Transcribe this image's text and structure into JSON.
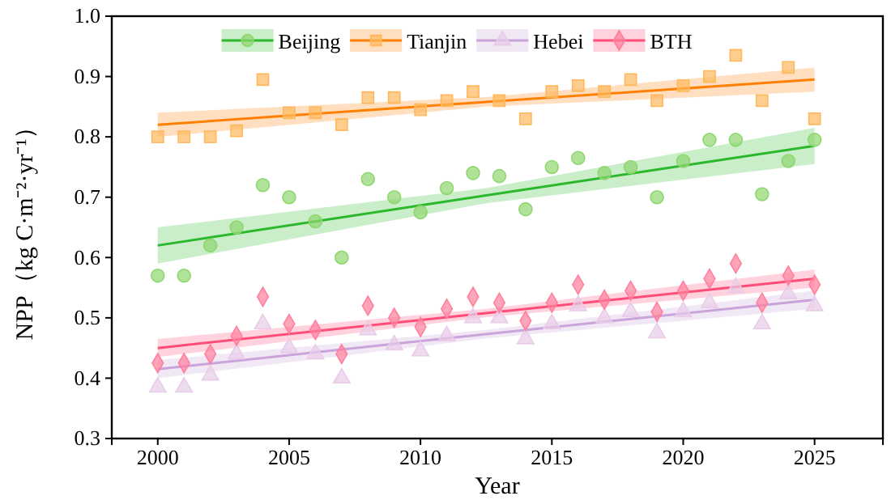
{
  "chart_data": {
    "type": "scatter",
    "xlabel": "Year",
    "ylabel": "NPP（kg C·m⁻²·yr⁻¹）",
    "xlim": [
      1998.25,
      2027.6
    ],
    "ylim": [
      0.3,
      1.0
    ],
    "xticks": [
      2000,
      2005,
      2010,
      2015,
      2020,
      2025
    ],
    "yticks": [
      0.3,
      0.4,
      0.5,
      0.6,
      0.7,
      0.8,
      0.9,
      {
        "value": 1,
        "label": "1.0"
      }
    ],
    "grid": false,
    "legend": "top",
    "x": [
      2000,
      2001,
      2002,
      2003,
      2004,
      2005,
      2006,
      2007,
      2008,
      2009,
      2010,
      2011,
      2012,
      2013,
      2014,
      2015,
      2016,
      2017,
      2018,
      2019,
      2020,
      2021,
      2022,
      2023,
      2024,
      2025
    ],
    "series": [
      {
        "name": "Beijing",
        "type": "scatter",
        "marker": "circle",
        "color": "#8fd66f",
        "values": [
          0.57,
          0.57,
          0.62,
          0.65,
          0.72,
          0.7,
          0.66,
          0.6,
          0.73,
          0.7,
          0.675,
          0.715,
          0.74,
          0.735,
          0.68,
          0.75,
          0.765,
          0.74,
          0.75,
          0.7,
          0.76,
          0.795,
          0.795,
          0.705,
          0.76,
          0.795
        ]
      },
      {
        "name": "Tianjin",
        "type": "scatter",
        "marker": "square",
        "color": "#ffb85c",
        "values": [
          0.8,
          0.8,
          0.8,
          0.81,
          0.895,
          0.84,
          0.84,
          0.82,
          0.865,
          0.865,
          0.845,
          0.86,
          0.875,
          0.86,
          0.83,
          0.875,
          0.885,
          0.875,
          0.895,
          0.86,
          0.885,
          0.9,
          0.935,
          0.86,
          0.915,
          0.83
        ]
      },
      {
        "name": "Hebei",
        "type": "scatter",
        "marker": "triangle",
        "color": "#e8cce8",
        "values": [
          0.385,
          0.385,
          0.405,
          0.44,
          0.49,
          0.45,
          0.44,
          0.4,
          0.48,
          0.455,
          0.445,
          0.47,
          0.5,
          0.5,
          0.465,
          0.49,
          0.52,
          0.5,
          0.51,
          0.475,
          0.51,
          0.525,
          0.55,
          0.49,
          0.54,
          0.52
        ]
      },
      {
        "name": "BTH",
        "type": "scatter",
        "marker": "diamond",
        "color": "#ff7f9c",
        "values": [
          0.425,
          0.425,
          0.44,
          0.47,
          0.535,
          0.49,
          0.48,
          0.44,
          0.52,
          0.5,
          0.485,
          0.515,
          0.535,
          0.525,
          0.495,
          0.525,
          0.555,
          0.53,
          0.545,
          0.51,
          0.545,
          0.565,
          0.59,
          0.525,
          0.57,
          0.555
        ]
      },
      {
        "type": "line",
        "color": "#2cb82c",
        "x": [
          2000,
          2012.5,
          2025
        ],
        "values": [
          0.62,
          0.703,
          0.785
        ],
        "lower": [
          0.59,
          0.69,
          0.755
        ],
        "upper": [
          0.65,
          0.715,
          0.815
        ]
      },
      {
        "type": "line",
        "color": "#ff8000",
        "x": [
          2000,
          2012.5,
          2025
        ],
        "values": [
          0.82,
          0.858,
          0.895
        ],
        "lower": [
          0.8,
          0.85,
          0.875
        ],
        "upper": [
          0.84,
          0.866,
          0.915
        ]
      },
      {
        "type": "line",
        "color": "#c9a3d9",
        "x": [
          2000,
          2012.5,
          2025
        ],
        "values": [
          0.415,
          0.473,
          0.53
        ],
        "lower": [
          0.4,
          0.466,
          0.515
        ],
        "upper": [
          0.43,
          0.48,
          0.545
        ]
      },
      {
        "type": "line",
        "color": "#ff4d78",
        "x": [
          2000,
          2012.5,
          2025
        ],
        "values": [
          0.45,
          0.508,
          0.565
        ],
        "lower": [
          0.435,
          0.501,
          0.55
        ],
        "upper": [
          0.465,
          0.515,
          0.58
        ]
      }
    ]
  }
}
